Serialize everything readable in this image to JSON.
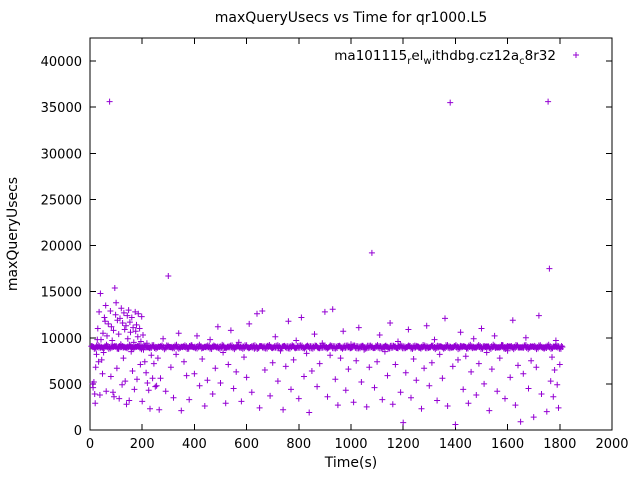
{
  "window": {
    "title": "maxQueryUsecs vs Time for qr1000.L5"
  },
  "legend": {
    "series_raw_name": "ma101115_rel_withdbg.cz12a_c8r32",
    "segments": [
      {
        "t": "ma101115",
        "sub": false
      },
      {
        "t": "r",
        "sub": true
      },
      {
        "t": "el",
        "sub": false
      },
      {
        "t": "w",
        "sub": true
      },
      {
        "t": "ithdbg.cz12a",
        "sub": false
      },
      {
        "t": "c",
        "sub": true
      },
      {
        "t": "8r32",
        "sub": false
      }
    ],
    "marker": "plus"
  },
  "chart_data": {
    "type": "scatter",
    "title": "maxQueryUsecs vs Time for qr1000.L5",
    "xlabel": "Time(s)",
    "ylabel": "maxQueryUsecs",
    "xlim": [
      0,
      2000
    ],
    "ylim": [
      0,
      42500
    ],
    "xticks": [
      0,
      200,
      400,
      600,
      800,
      1000,
      1200,
      1400,
      1600,
      1800,
      2000
    ],
    "yticks": [
      0,
      5000,
      10000,
      15000,
      20000,
      25000,
      30000,
      35000,
      40000
    ],
    "grid": false,
    "legend_position": "top-right-inside",
    "marker_color": "#9400D3",
    "marker": "plus",
    "series": [
      {
        "name": "ma101115_rel_withdbg.cz12a_c8r32",
        "color": "#9400D3",
        "band": {
          "x_start": 5,
          "x_end": 1810,
          "y_center": 9000,
          "jitter": 250,
          "count": 620
        },
        "points": [
          [
            10,
            5000
          ],
          [
            12,
            4600
          ],
          [
            15,
            5200
          ],
          [
            18,
            3900
          ],
          [
            20,
            2900
          ],
          [
            22,
            6800
          ],
          [
            25,
            8200
          ],
          [
            28,
            9800
          ],
          [
            30,
            11000
          ],
          [
            33,
            7400
          ],
          [
            35,
            12800
          ],
          [
            38,
            3800
          ],
          [
            40,
            14800
          ],
          [
            42,
            9800
          ],
          [
            45,
            7600
          ],
          [
            48,
            6100
          ],
          [
            50,
            10500
          ],
          [
            52,
            8400
          ],
          [
            55,
            12200
          ],
          [
            58,
            11800
          ],
          [
            60,
            13500
          ],
          [
            62,
            4200
          ],
          [
            65,
            10200
          ],
          [
            68,
            9100
          ],
          [
            70,
            11500
          ],
          [
            75,
            35600
          ],
          [
            78,
            12900
          ],
          [
            80,
            5800
          ],
          [
            82,
            11200
          ],
          [
            85,
            9700
          ],
          [
            88,
            4100
          ],
          [
            90,
            10800
          ],
          [
            92,
            3600
          ],
          [
            95,
            15400
          ],
          [
            98,
            12500
          ],
          [
            100,
            13800
          ],
          [
            103,
            6700
          ],
          [
            105,
            11900
          ],
          [
            108,
            8800
          ],
          [
            110,
            10400
          ],
          [
            112,
            3400
          ],
          [
            115,
            12100
          ],
          [
            118,
            9300
          ],
          [
            120,
            13200
          ],
          [
            123,
            4900
          ],
          [
            125,
            11600
          ],
          [
            128,
            7800
          ],
          [
            130,
            12700
          ],
          [
            133,
            10900
          ],
          [
            135,
            5300
          ],
          [
            138,
            11300
          ],
          [
            140,
            2800
          ],
          [
            143,
            12400
          ],
          [
            145,
            9900
          ],
          [
            148,
            13000
          ],
          [
            150,
            3200
          ],
          [
            153,
            11700
          ],
          [
            155,
            10600
          ],
          [
            158,
            8500
          ],
          [
            160,
            12200
          ],
          [
            163,
            6400
          ],
          [
            165,
            11100
          ],
          [
            168,
            9500
          ],
          [
            170,
            4400
          ],
          [
            173,
            12800
          ],
          [
            175,
            10700
          ],
          [
            178,
            11400
          ],
          [
            180,
            5500
          ],
          [
            183,
            10100
          ],
          [
            185,
            12600
          ],
          [
            188,
            9200
          ],
          [
            190,
            11000
          ],
          [
            193,
            7100
          ],
          [
            195,
            9600
          ],
          [
            198,
            12300
          ],
          [
            200,
            3100
          ],
          [
            203,
            10300
          ],
          [
            205,
            8700
          ],
          [
            210,
            7400
          ],
          [
            215,
            6200
          ],
          [
            218,
            9400
          ],
          [
            220,
            5100
          ],
          [
            225,
            4300
          ],
          [
            228,
            8900
          ],
          [
            230,
            2300
          ],
          [
            235,
            8100
          ],
          [
            240,
            5600
          ],
          [
            245,
            7200
          ],
          [
            250,
            4700
          ],
          [
            255,
            4800
          ],
          [
            260,
            7800
          ],
          [
            265,
            2200
          ],
          [
            270,
            5600
          ],
          [
            280,
            9900
          ],
          [
            290,
            4200
          ],
          [
            300,
            16700
          ],
          [
            310,
            6800
          ],
          [
            320,
            3500
          ],
          [
            330,
            8200
          ],
          [
            340,
            10500
          ],
          [
            350,
            2100
          ],
          [
            360,
            7400
          ],
          [
            370,
            5900
          ],
          [
            380,
            3300
          ],
          [
            390,
            9200
          ],
          [
            400,
            6100
          ],
          [
            410,
            10200
          ],
          [
            420,
            4800
          ],
          [
            430,
            7700
          ],
          [
            440,
            2600
          ],
          [
            450,
            5400
          ],
          [
            460,
            9800
          ],
          [
            470,
            3900
          ],
          [
            480,
            6700
          ],
          [
            490,
            11200
          ],
          [
            500,
            5100
          ],
          [
            510,
            8400
          ],
          [
            520,
            2900
          ],
          [
            530,
            7100
          ],
          [
            540,
            10800
          ],
          [
            550,
            4500
          ],
          [
            560,
            6300
          ],
          [
            570,
            9500
          ],
          [
            580,
            3100
          ],
          [
            590,
            7900
          ],
          [
            600,
            5700
          ],
          [
            610,
            11500
          ],
          [
            620,
            4100
          ],
          [
            630,
            8800
          ],
          [
            640,
            12600
          ],
          [
            650,
            2400
          ],
          [
            660,
            12900
          ],
          [
            670,
            6500
          ],
          [
            680,
            9100
          ],
          [
            690,
            3700
          ],
          [
            700,
            7300
          ],
          [
            710,
            10100
          ],
          [
            720,
            5300
          ],
          [
            730,
            8600
          ],
          [
            740,
            2200
          ],
          [
            750,
            6900
          ],
          [
            760,
            11800
          ],
          [
            770,
            4400
          ],
          [
            780,
            7600
          ],
          [
            790,
            9700
          ],
          [
            800,
            3400
          ],
          [
            810,
            12200
          ],
          [
            820,
            5800
          ],
          [
            830,
            8300
          ],
          [
            840,
            1900
          ],
          [
            850,
            6400
          ],
          [
            860,
            10400
          ],
          [
            870,
            4700
          ],
          [
            880,
            7200
          ],
          [
            890,
            9400
          ],
          [
            900,
            12800
          ],
          [
            910,
            3600
          ],
          [
            920,
            8100
          ],
          [
            930,
            13100
          ],
          [
            940,
            5500
          ],
          [
            950,
            2700
          ],
          [
            960,
            7800
          ],
          [
            970,
            10700
          ],
          [
            980,
            4300
          ],
          [
            990,
            6600
          ],
          [
            1000,
            9300
          ],
          [
            1010,
            3000
          ],
          [
            1020,
            7500
          ],
          [
            1030,
            11100
          ],
          [
            1040,
            5200
          ],
          [
            1050,
            8700
          ],
          [
            1060,
            2500
          ],
          [
            1070,
            6800
          ],
          [
            1080,
            19200
          ],
          [
            1090,
            4600
          ],
          [
            1100,
            7400
          ],
          [
            1110,
            10300
          ],
          [
            1120,
            3300
          ],
          [
            1130,
            8500
          ],
          [
            1140,
            5900
          ],
          [
            1150,
            11600
          ],
          [
            1160,
            2800
          ],
          [
            1170,
            7100
          ],
          [
            1180,
            9600
          ],
          [
            1190,
            4100
          ],
          [
            1200,
            800
          ],
          [
            1210,
            6200
          ],
          [
            1220,
            10900
          ],
          [
            1230,
            3500
          ],
          [
            1240,
            7700
          ],
          [
            1250,
            5400
          ],
          [
            1260,
            8900
          ],
          [
            1270,
            2300
          ],
          [
            1280,
            6700
          ],
          [
            1290,
            11300
          ],
          [
            1300,
            4800
          ],
          [
            1310,
            7300
          ],
          [
            1320,
            9800
          ],
          [
            1330,
            3200
          ],
          [
            1340,
            8200
          ],
          [
            1350,
            5600
          ],
          [
            1360,
            12100
          ],
          [
            1370,
            2600
          ],
          [
            1380,
            35500
          ],
          [
            1390,
            6900
          ],
          [
            1400,
            600
          ],
          [
            1410,
            7600
          ],
          [
            1420,
            10600
          ],
          [
            1430,
            4400
          ],
          [
            1440,
            8000
          ],
          [
            1450,
            2900
          ],
          [
            1460,
            6300
          ],
          [
            1470,
            9900
          ],
          [
            1480,
            3800
          ],
          [
            1490,
            7200
          ],
          [
            1500,
            11000
          ],
          [
            1510,
            5000
          ],
          [
            1520,
            8400
          ],
          [
            1530,
            2100
          ],
          [
            1540,
            6600
          ],
          [
            1550,
            10200
          ],
          [
            1560,
            4200
          ],
          [
            1570,
            7800
          ],
          [
            1580,
            9200
          ],
          [
            1590,
            3400
          ],
          [
            1600,
            8600
          ],
          [
            1610,
            5700
          ],
          [
            1620,
            11900
          ],
          [
            1630,
            2700
          ],
          [
            1640,
            7000
          ],
          [
            1650,
            900
          ],
          [
            1660,
            6100
          ],
          [
            1670,
            10000
          ],
          [
            1680,
            4500
          ],
          [
            1690,
            7500
          ],
          [
            1700,
            1400
          ],
          [
            1710,
            6800
          ],
          [
            1720,
            12400
          ],
          [
            1730,
            3900
          ],
          [
            1740,
            8800
          ],
          [
            1750,
            2000
          ],
          [
            1755,
            35600
          ],
          [
            1760,
            17500
          ],
          [
            1765,
            5300
          ],
          [
            1770,
            7900
          ],
          [
            1775,
            3600
          ],
          [
            1780,
            6500
          ],
          [
            1785,
            9700
          ],
          [
            1790,
            4900
          ],
          [
            1795,
            2400
          ],
          [
            1800,
            7100
          ]
        ]
      }
    ]
  }
}
